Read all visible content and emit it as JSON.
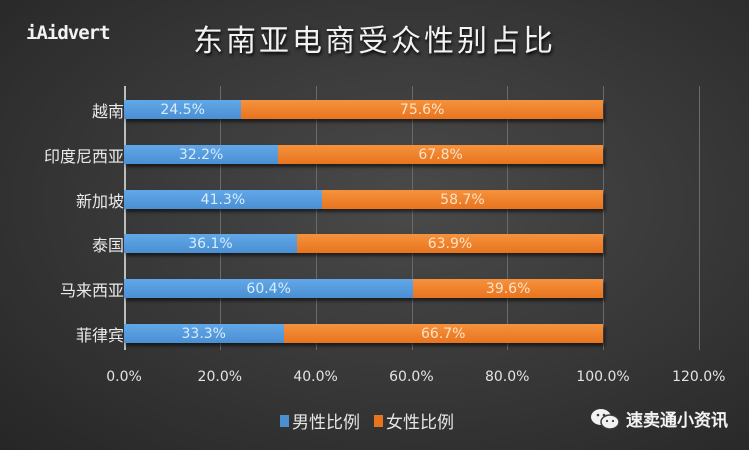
{
  "logo": {
    "text": "iAidvert"
  },
  "title": "东南亚电商受众性别占比",
  "chart_data": {
    "type": "bar",
    "orientation": "horizontal",
    "stacked": true,
    "title": "东南亚电商受众性别占比",
    "categories": [
      "越南",
      "印度尼西亚",
      "新加坡",
      "泰国",
      "马来西亚",
      "菲律宾"
    ],
    "series": [
      {
        "name": "男性比例",
        "color": "#4a8fd2",
        "values": [
          24.5,
          32.2,
          41.3,
          36.1,
          60.4,
          33.3
        ],
        "labels": [
          "24.5%",
          "32.2%",
          "41.3%",
          "36.1%",
          "60.4%",
          "33.3%"
        ]
      },
      {
        "name": "女性比例",
        "color": "#e8741f",
        "values": [
          75.6,
          67.8,
          58.7,
          63.9,
          39.6,
          66.7
        ],
        "labels": [
          "75.6%",
          "67.8%",
          "58.7%",
          "63.9%",
          "39.6%",
          "66.7%"
        ]
      }
    ],
    "xlabel": "",
    "ylabel": "",
    "xlim": [
      0,
      120
    ],
    "xticks": [
      "0.0%",
      "20.0%",
      "40.0%",
      "60.0%",
      "80.0%",
      "100.0%",
      "120.0%"
    ],
    "grid": true,
    "legend_position": "bottom"
  },
  "legend": {
    "male": "男性比例",
    "female": "女性比例"
  },
  "watermark": {
    "text": "速卖通小资讯",
    "icon": "wechat-icon"
  }
}
